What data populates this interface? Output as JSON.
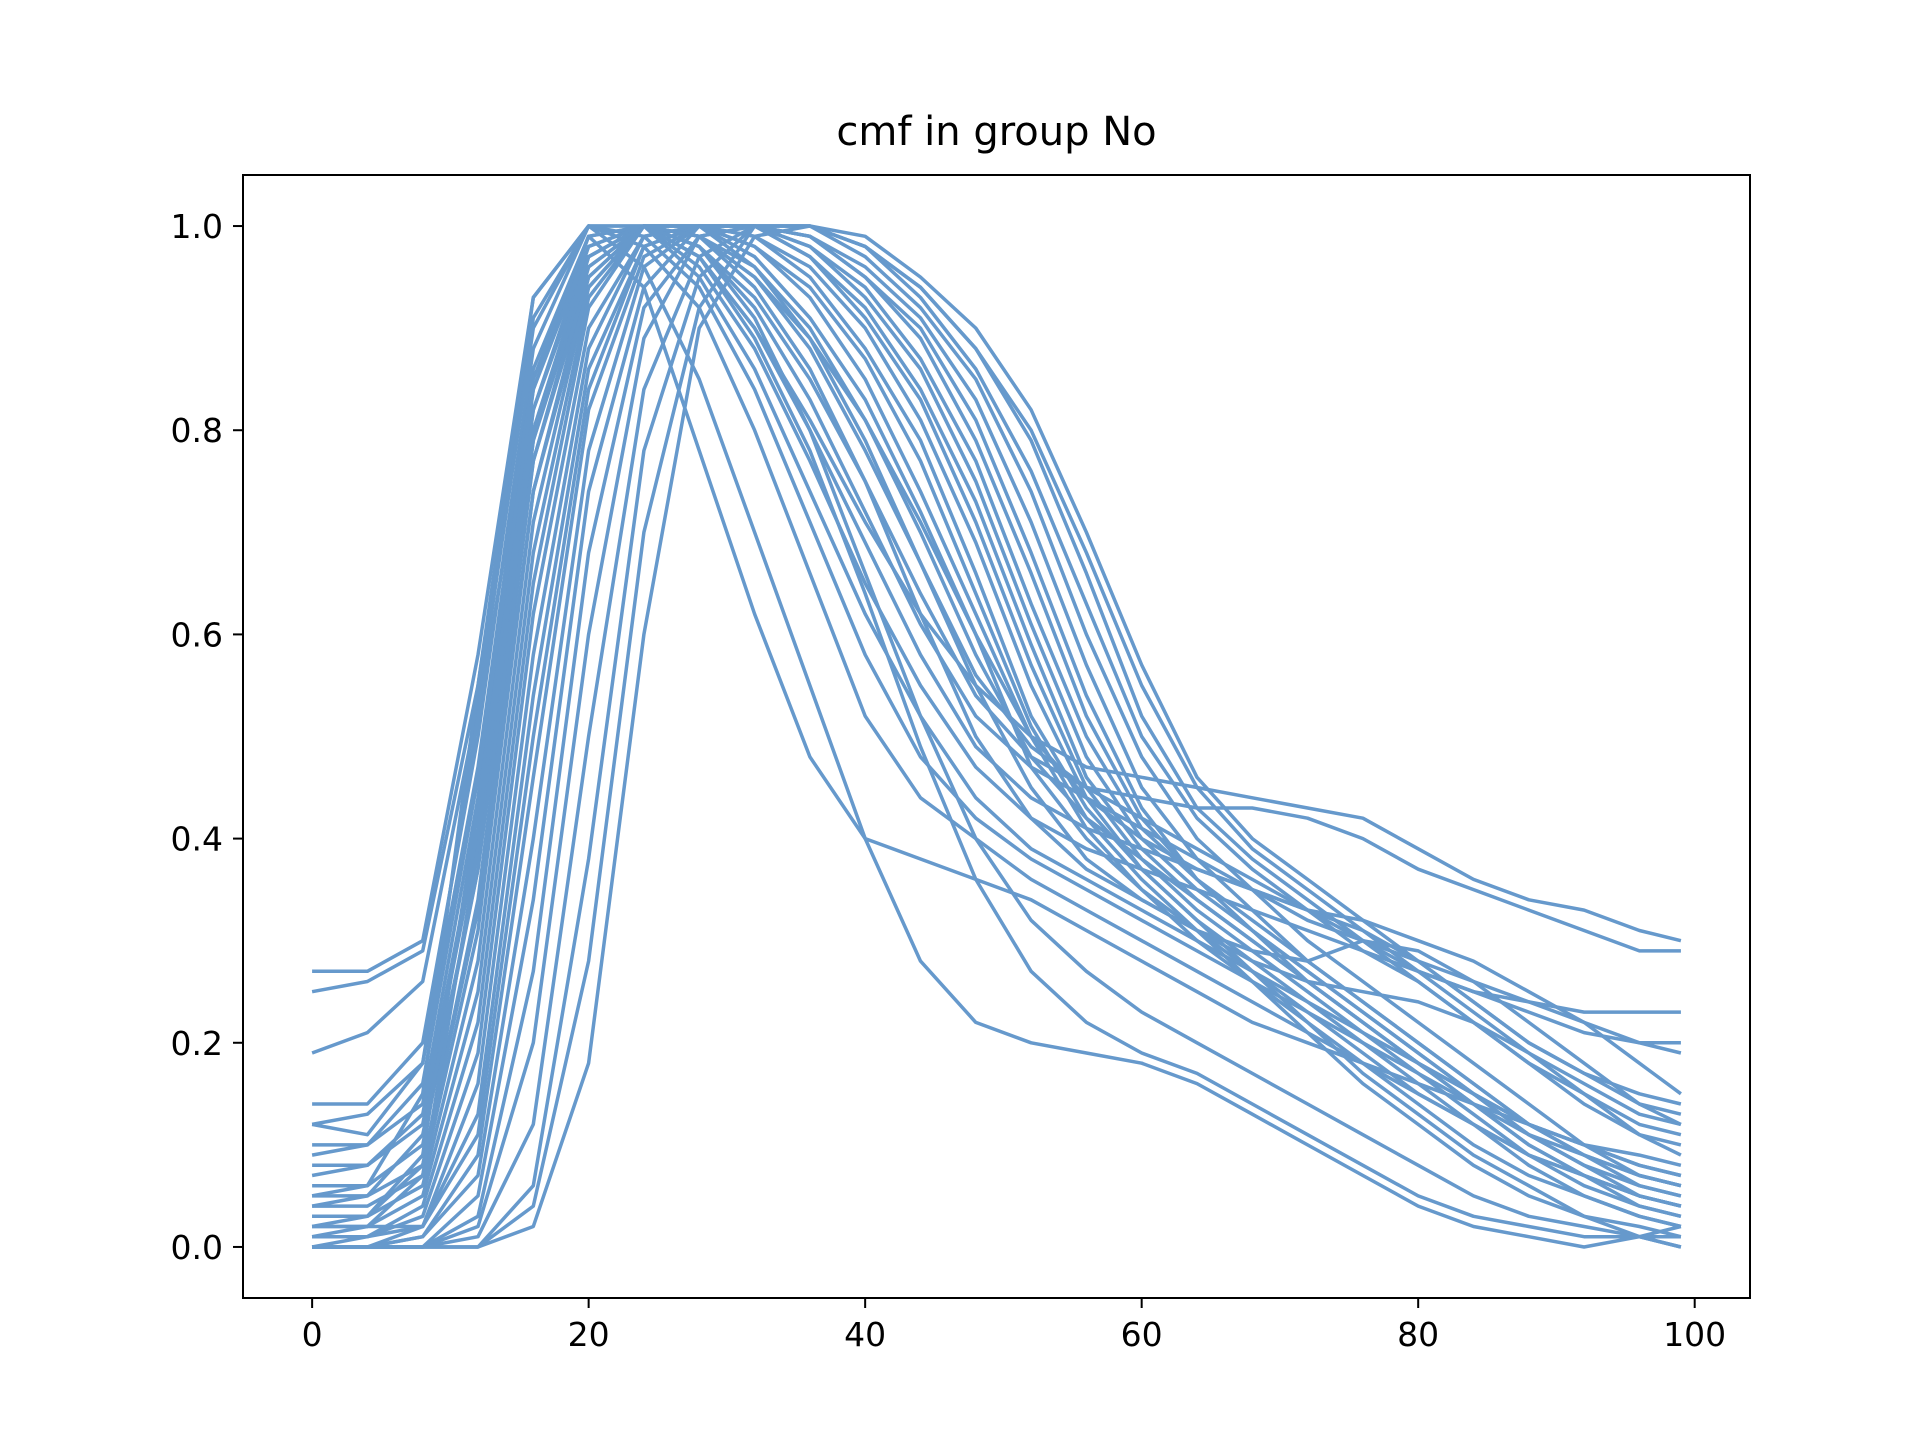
{
  "chart_data": {
    "type": "line",
    "title": "cmf in group No",
    "xlabel": "",
    "ylabel": "",
    "xlim": [
      -5,
      104
    ],
    "ylim": [
      -0.05,
      1.05
    ],
    "xticks": [
      0,
      20,
      40,
      60,
      80,
      100
    ],
    "xtick_labels": [
      "0",
      "20",
      "40",
      "60",
      "80",
      "100"
    ],
    "yticks": [
      0.0,
      0.2,
      0.4,
      0.6,
      0.8,
      1.0
    ],
    "ytick_labels": [
      "0.0",
      "0.2",
      "0.4",
      "0.6",
      "0.8",
      "1.0"
    ],
    "grid": false,
    "legend": "none",
    "line_color": "#6699cc",
    "x": [
      0,
      4,
      8,
      12,
      16,
      20,
      24,
      28,
      32,
      36,
      40,
      44,
      48,
      52,
      56,
      60,
      64,
      68,
      72,
      76,
      80,
      84,
      88,
      92,
      96,
      99
    ],
    "series": [
      {
        "values": [
          0.27,
          0.27,
          0.3,
          0.58,
          0.93,
          1.0,
          0.98,
          0.92,
          0.8,
          0.66,
          0.52,
          0.44,
          0.4,
          0.36,
          0.33,
          0.3,
          0.27,
          0.24,
          0.21,
          0.18,
          0.15,
          0.12,
          0.09,
          0.07,
          0.05,
          0.04
        ]
      },
      {
        "values": [
          0.25,
          0.26,
          0.29,
          0.55,
          0.91,
          1.0,
          0.99,
          0.94,
          0.84,
          0.71,
          0.58,
          0.48,
          0.42,
          0.38,
          0.35,
          0.32,
          0.29,
          0.26,
          0.23,
          0.2,
          0.17,
          0.14,
          0.11,
          0.09,
          0.07,
          0.06
        ]
      },
      {
        "values": [
          0.19,
          0.21,
          0.26,
          0.53,
          0.9,
          1.0,
          1.0,
          0.95,
          0.86,
          0.74,
          0.62,
          0.52,
          0.44,
          0.39,
          0.36,
          0.33,
          0.3,
          0.27,
          0.24,
          0.21,
          0.18,
          0.15,
          0.12,
          0.1,
          0.08,
          0.07
        ]
      },
      {
        "values": [
          0.14,
          0.14,
          0.2,
          0.5,
          0.88,
          1.0,
          1.0,
          0.96,
          0.88,
          0.77,
          0.65,
          0.55,
          0.47,
          0.42,
          0.39,
          0.37,
          0.35,
          0.33,
          0.31,
          0.29,
          0.27,
          0.25,
          0.23,
          0.21,
          0.2,
          0.2
        ]
      },
      {
        "values": [
          0.12,
          0.13,
          0.18,
          0.47,
          0.86,
          0.99,
          1.0,
          0.97,
          0.9,
          0.8,
          0.69,
          0.58,
          0.49,
          0.44,
          0.41,
          0.39,
          0.37,
          0.35,
          0.33,
          0.31,
          0.28,
          0.24,
          0.2,
          0.17,
          0.15,
          0.14
        ]
      },
      {
        "values": [
          0.1,
          0.1,
          0.14,
          0.44,
          0.84,
          0.99,
          1.0,
          0.98,
          0.92,
          0.83,
          0.72,
          0.61,
          0.52,
          0.47,
          0.44,
          0.41,
          0.38,
          0.35,
          0.32,
          0.3,
          0.28,
          0.26,
          0.24,
          0.22,
          0.2,
          0.19
        ]
      },
      {
        "values": [
          0.08,
          0.08,
          0.12,
          0.4,
          0.82,
          0.98,
          1.0,
          0.98,
          0.93,
          0.85,
          0.75,
          0.64,
          0.54,
          0.48,
          0.45,
          0.44,
          0.43,
          0.43,
          0.42,
          0.4,
          0.37,
          0.35,
          0.33,
          0.31,
          0.29,
          0.29
        ]
      },
      {
        "values": [
          0.06,
          0.06,
          0.1,
          0.37,
          0.79,
          0.97,
          1.0,
          0.99,
          0.95,
          0.88,
          0.78,
          0.67,
          0.56,
          0.49,
          0.45,
          0.42,
          0.39,
          0.36,
          0.33,
          0.3,
          0.27,
          0.25,
          0.24,
          0.23,
          0.23,
          0.23
        ]
      },
      {
        "values": [
          0.05,
          0.05,
          0.08,
          0.34,
          0.77,
          0.96,
          1.0,
          0.99,
          0.96,
          0.9,
          0.81,
          0.7,
          0.58,
          0.48,
          0.42,
          0.38,
          0.34,
          0.3,
          0.26,
          0.22,
          0.18,
          0.15,
          0.12,
          0.1,
          0.09,
          0.08
        ]
      },
      {
        "values": [
          0.04,
          0.04,
          0.07,
          0.31,
          0.74,
          0.95,
          1.0,
          1.0,
          0.97,
          0.91,
          0.83,
          0.72,
          0.6,
          0.47,
          0.4,
          0.35,
          0.31,
          0.27,
          0.23,
          0.19,
          0.15,
          0.12,
          0.09,
          0.07,
          0.05,
          0.04
        ]
      },
      {
        "values": [
          0.03,
          0.03,
          0.06,
          0.28,
          0.71,
          0.94,
          1.0,
          1.0,
          0.98,
          0.93,
          0.85,
          0.74,
          0.62,
          0.5,
          0.41,
          0.35,
          0.3,
          0.26,
          0.22,
          0.18,
          0.14,
          0.1,
          0.07,
          0.05,
          0.03,
          0.02
        ]
      },
      {
        "values": [
          0.02,
          0.02,
          0.05,
          0.25,
          0.68,
          0.93,
          1.0,
          1.0,
          0.98,
          0.94,
          0.87,
          0.77,
          0.64,
          0.51,
          0.42,
          0.36,
          0.31,
          0.26,
          0.21,
          0.16,
          0.12,
          0.08,
          0.05,
          0.03,
          0.02,
          0.01
        ]
      },
      {
        "values": [
          0.01,
          0.01,
          0.04,
          0.22,
          0.65,
          0.92,
          1.0,
          1.0,
          0.99,
          0.95,
          0.88,
          0.79,
          0.66,
          0.52,
          0.43,
          0.37,
          0.32,
          0.27,
          0.22,
          0.17,
          0.13,
          0.09,
          0.06,
          0.03,
          0.01,
          0.0
        ]
      },
      {
        "values": [
          0.0,
          0.01,
          0.03,
          0.19,
          0.62,
          0.9,
          0.99,
          1.0,
          0.99,
          0.96,
          0.9,
          0.81,
          0.69,
          0.55,
          0.44,
          0.37,
          0.32,
          0.28,
          0.24,
          0.2,
          0.16,
          0.12,
          0.08,
          0.05,
          0.03,
          0.02
        ]
      },
      {
        "values": [
          0.0,
          0.0,
          0.02,
          0.16,
          0.58,
          0.88,
          0.99,
          1.0,
          1.0,
          0.97,
          0.91,
          0.83,
          0.71,
          0.57,
          0.45,
          0.38,
          0.33,
          0.29,
          0.25,
          0.21,
          0.17,
          0.13,
          0.09,
          0.06,
          0.04,
          0.03
        ]
      },
      {
        "values": [
          0.01,
          0.01,
          0.02,
          0.13,
          0.54,
          0.86,
          0.98,
          1.0,
          1.0,
          0.97,
          0.92,
          0.84,
          0.73,
          0.59,
          0.46,
          0.39,
          0.34,
          0.3,
          0.26,
          0.22,
          0.18,
          0.14,
          0.1,
          0.07,
          0.05,
          0.04
        ]
      },
      {
        "values": [
          0.02,
          0.02,
          0.02,
          0.11,
          0.5,
          0.84,
          0.98,
          1.0,
          1.0,
          0.98,
          0.93,
          0.86,
          0.75,
          0.61,
          0.48,
          0.4,
          0.35,
          0.31,
          0.27,
          0.23,
          0.19,
          0.15,
          0.11,
          0.08,
          0.06,
          0.05
        ]
      },
      {
        "values": [
          0.0,
          0.0,
          0.01,
          0.09,
          0.46,
          0.82,
          0.97,
          1.0,
          1.0,
          0.98,
          0.94,
          0.87,
          0.77,
          0.63,
          0.5,
          0.41,
          0.36,
          0.32,
          0.28,
          0.24,
          0.2,
          0.16,
          0.12,
          0.09,
          0.07,
          0.06
        ]
      },
      {
        "values": [
          0.0,
          0.0,
          0.01,
          0.07,
          0.4,
          0.78,
          0.96,
          1.0,
          1.0,
          0.99,
          0.95,
          0.89,
          0.79,
          0.66,
          0.52,
          0.42,
          0.36,
          0.31,
          0.27,
          0.23,
          0.19,
          0.15,
          0.11,
          0.08,
          0.05,
          0.04
        ]
      },
      {
        "values": [
          0.0,
          0.0,
          0.0,
          0.05,
          0.34,
          0.74,
          0.94,
          1.0,
          1.0,
          0.99,
          0.95,
          0.9,
          0.81,
          0.68,
          0.54,
          0.43,
          0.36,
          0.31,
          0.26,
          0.22,
          0.18,
          0.14,
          0.1,
          0.07,
          0.04,
          0.03
        ]
      },
      {
        "values": [
          0.0,
          0.0,
          0.0,
          0.03,
          0.27,
          0.68,
          0.92,
          0.99,
          1.0,
          0.99,
          0.96,
          0.91,
          0.83,
          0.71,
          0.57,
          0.45,
          0.38,
          0.33,
          0.28,
          0.24,
          0.2,
          0.16,
          0.12,
          0.09,
          0.06,
          0.05
        ]
      },
      {
        "values": [
          0.0,
          0.0,
          0.0,
          0.02,
          0.2,
          0.6,
          0.89,
          0.99,
          1.0,
          1.0,
          0.97,
          0.92,
          0.85,
          0.74,
          0.6,
          0.48,
          0.4,
          0.35,
          0.3,
          0.26,
          0.22,
          0.18,
          0.14,
          0.1,
          0.07,
          0.06
        ]
      },
      {
        "values": [
          0.0,
          0.0,
          0.0,
          0.01,
          0.12,
          0.5,
          0.84,
          0.97,
          1.0,
          1.0,
          0.98,
          0.93,
          0.86,
          0.76,
          0.63,
          0.5,
          0.42,
          0.37,
          0.33,
          0.29,
          0.26,
          0.22,
          0.18,
          0.14,
          0.11,
          0.1
        ]
      },
      {
        "values": [
          0.0,
          0.0,
          0.0,
          0.0,
          0.06,
          0.38,
          0.78,
          0.95,
          1.0,
          1.0,
          0.98,
          0.94,
          0.88,
          0.79,
          0.66,
          0.52,
          0.43,
          0.38,
          0.34,
          0.3,
          0.26,
          0.22,
          0.18,
          0.15,
          0.12,
          0.11
        ]
      },
      {
        "values": [
          0.0,
          0.0,
          0.0,
          0.0,
          0.04,
          0.28,
          0.7,
          0.92,
          1.0,
          1.0,
          0.98,
          0.94,
          0.88,
          0.8,
          0.68,
          0.55,
          0.45,
          0.39,
          0.35,
          0.31,
          0.27,
          0.23,
          0.19,
          0.16,
          0.13,
          0.12
        ]
      },
      {
        "values": [
          0.0,
          0.0,
          0.0,
          0.0,
          0.02,
          0.18,
          0.6,
          0.9,
          0.99,
          1.0,
          0.99,
          0.95,
          0.9,
          0.82,
          0.7,
          0.57,
          0.46,
          0.4,
          0.36,
          0.32,
          0.28,
          0.24,
          0.2,
          0.17,
          0.14,
          0.13
        ]
      },
      {
        "values": [
          0.12,
          0.11,
          0.18,
          0.52,
          0.85,
          0.99,
          0.94,
          0.78,
          0.62,
          0.48,
          0.4,
          0.38,
          0.36,
          0.34,
          0.31,
          0.28,
          0.25,
          0.22,
          0.2,
          0.18,
          0.16,
          0.14,
          0.12,
          0.1,
          0.08,
          0.07
        ]
      },
      {
        "values": [
          0.05,
          0.06,
          0.15,
          0.55,
          0.93,
          1.0,
          0.96,
          0.85,
          0.7,
          0.55,
          0.4,
          0.28,
          0.22,
          0.2,
          0.19,
          0.18,
          0.16,
          0.13,
          0.1,
          0.07,
          0.04,
          0.02,
          0.01,
          0.0,
          0.01,
          0.02
        ]
      },
      {
        "values": [
          0.03,
          0.03,
          0.09,
          0.43,
          0.82,
          0.97,
          1.0,
          0.97,
          0.89,
          0.78,
          0.64,
          0.49,
          0.36,
          0.27,
          0.22,
          0.19,
          0.17,
          0.14,
          0.11,
          0.08,
          0.05,
          0.03,
          0.02,
          0.01,
          0.01,
          0.0
        ]
      },
      {
        "values": [
          0.01,
          0.02,
          0.07,
          0.39,
          0.79,
          0.96,
          1.0,
          0.98,
          0.91,
          0.8,
          0.66,
          0.52,
          0.4,
          0.32,
          0.27,
          0.23,
          0.2,
          0.17,
          0.14,
          0.11,
          0.08,
          0.05,
          0.03,
          0.02,
          0.01,
          0.01
        ]
      },
      {
        "values": [
          0.09,
          0.1,
          0.16,
          0.46,
          0.84,
          0.98,
          1.0,
          0.97,
          0.9,
          0.81,
          0.71,
          0.62,
          0.55,
          0.5,
          0.47,
          0.46,
          0.45,
          0.44,
          0.43,
          0.42,
          0.39,
          0.36,
          0.34,
          0.33,
          0.31,
          0.3
        ]
      },
      {
        "values": [
          0.07,
          0.08,
          0.13,
          0.41,
          0.8,
          0.97,
          1.0,
          0.99,
          0.95,
          0.89,
          0.81,
          0.71,
          0.6,
          0.5,
          0.44,
          0.4,
          0.37,
          0.35,
          0.33,
          0.32,
          0.3,
          0.28,
          0.25,
          0.22,
          0.18,
          0.15
        ]
      },
      {
        "values": [
          0.04,
          0.05,
          0.11,
          0.37,
          0.77,
          0.95,
          1.0,
          0.99,
          0.94,
          0.86,
          0.75,
          0.62,
          0.5,
          0.42,
          0.37,
          0.34,
          0.31,
          0.29,
          0.28,
          0.3,
          0.29,
          0.26,
          0.22,
          0.18,
          0.14,
          0.12
        ]
      },
      {
        "values": [
          0.02,
          0.03,
          0.08,
          0.33,
          0.74,
          0.94,
          1.0,
          1.0,
          0.96,
          0.89,
          0.79,
          0.67,
          0.55,
          0.45,
          0.38,
          0.34,
          0.31,
          0.28,
          0.26,
          0.25,
          0.24,
          0.22,
          0.19,
          0.15,
          0.11,
          0.09
        ]
      }
    ]
  }
}
